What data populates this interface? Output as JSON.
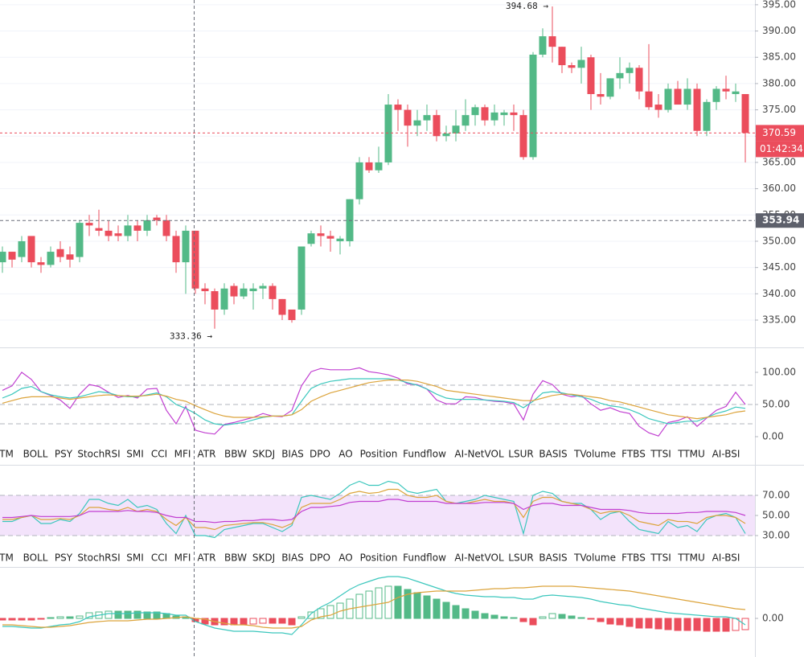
{
  "chart_data": [
    {
      "type": "candlestick",
      "up_color": "#53b987",
      "down_color": "#eb4d5c",
      "ylim": [
        329.8,
        395.9
      ],
      "yticks": [
        {
          "value": 335,
          "label": "335.00"
        },
        {
          "value": 340,
          "label": "340.00"
        },
        {
          "value": 345,
          "label": "345.00"
        },
        {
          "value": 350,
          "label": "350.00"
        },
        {
          "value": 355,
          "label": "355.00"
        },
        {
          "value": 360,
          "label": "360.00"
        },
        {
          "value": 365,
          "label": "365.00"
        },
        {
          "value": 370,
          "label": "370.00"
        },
        {
          "value": 375,
          "label": "375.00"
        },
        {
          "value": 380,
          "label": "380.00"
        },
        {
          "value": 385,
          "label": "385.00"
        },
        {
          "value": 390,
          "label": "390.00"
        },
        {
          "value": 395,
          "label": "395.00"
        }
      ],
      "grid": true,
      "open": [
        346,
        348,
        347,
        351,
        346,
        345.5,
        348.5,
        347.5,
        347,
        353.5,
        352.5,
        352,
        351.5,
        351,
        353,
        352,
        354.5,
        354,
        351,
        346,
        352,
        341,
        340.5,
        337,
        341.5,
        339.5,
        340.5,
        341,
        341.5,
        339,
        337,
        337,
        349.5,
        351.5,
        351,
        350,
        350,
        358,
        365,
        363.5,
        365,
        376,
        375,
        372,
        373,
        374,
        370,
        370.5,
        372,
        374,
        375.5,
        373,
        374,
        374.5,
        374,
        366,
        385.5,
        389,
        387,
        383.5,
        383,
        385,
        378,
        377.5,
        381,
        382,
        383,
        378.5,
        376,
        375,
        379,
        376,
        379,
        371,
        376.5,
        379,
        378,
        378
      ],
      "high": [
        349,
        348,
        351,
        351,
        347,
        349,
        350,
        349,
        354,
        355,
        356,
        354,
        353,
        355,
        354,
        355,
        355,
        355,
        352,
        353,
        352,
        342,
        341,
        342,
        342,
        342,
        342,
        342,
        342,
        339,
        337,
        349,
        352,
        353,
        352,
        351,
        358,
        366,
        366,
        368,
        378,
        377,
        376,
        375,
        376,
        375,
        372,
        375,
        377,
        376,
        376,
        376,
        375,
        376,
        375,
        386,
        390.5,
        394.68,
        387,
        384,
        387,
        385.5,
        382,
        381,
        385,
        384,
        383.5,
        387.5,
        378,
        380,
        380.5,
        381,
        380,
        377,
        379.5,
        381.5,
        380,
        378
      ],
      "low": [
        344,
        345,
        346,
        345,
        344,
        345,
        346,
        345,
        346,
        351,
        351,
        350,
        350,
        350,
        350,
        351,
        353,
        350,
        344,
        340,
        340,
        338,
        333.36,
        336,
        338,
        339,
        337,
        339,
        337,
        335,
        334.5,
        336,
        349,
        349,
        348,
        347.5,
        349,
        357,
        363,
        363,
        364.5,
        371,
        368,
        370,
        371,
        369,
        369,
        369,
        371,
        372,
        372,
        372,
        372,
        371,
        365.5,
        365.5,
        385,
        384,
        382,
        382,
        380,
        375,
        376,
        377,
        379,
        380,
        377,
        375,
        373.5,
        374.5,
        376,
        375,
        370,
        370,
        375,
        377,
        376.5,
        365
      ],
      "close": [
        348,
        346.5,
        350,
        346,
        345.5,
        348,
        347,
        346.5,
        353.5,
        353,
        352,
        351,
        351,
        353,
        352,
        354,
        354,
        351,
        346,
        352,
        341,
        340.5,
        337,
        341,
        339.5,
        341,
        341,
        341.5,
        339,
        336,
        335,
        349,
        351.5,
        351,
        350.5,
        350.5,
        358,
        365,
        363.5,
        365,
        376,
        375,
        372,
        373,
        374,
        370,
        370.5,
        372,
        374,
        375.5,
        373,
        374.5,
        374.5,
        374,
        366,
        385.5,
        389,
        387,
        383.5,
        383,
        384.5,
        378,
        377.5,
        381,
        382,
        383,
        378.5,
        375.5,
        375,
        379,
        376,
        379,
        371,
        376.5,
        379,
        378.5,
        378.5,
        370.59
      ],
      "last_price": {
        "value": 370.59,
        "label": "370.59"
      },
      "countdown": "01:42:34",
      "crosshair_price": {
        "value": 353.94,
        "label": "353.94"
      },
      "high_label": {
        "value": 394.68,
        "label": "394.68 →"
      },
      "low_label": {
        "value": 333.36,
        "label": "333.36 →"
      }
    },
    {
      "type": "line",
      "ylim": [
        -43.75,
        138.75
      ],
      "yticks": [
        {
          "value": 0,
          "label": "0.00"
        },
        {
          "value": 50,
          "label": "50.00"
        },
        {
          "value": 100,
          "label": "100.00"
        }
      ],
      "guides": [
        80,
        50,
        20
      ],
      "series": [
        {
          "color": "#c13fd1",
          "values": [
            72,
            79,
            100,
            89,
            70,
            64,
            57,
            44,
            66,
            81,
            78,
            69,
            61,
            64,
            60,
            74,
            75,
            41,
            20,
            47,
            10,
            6,
            4,
            19,
            22,
            26,
            30,
            36,
            32,
            31,
            41,
            79,
            101,
            106,
            104,
            104,
            104,
            107,
            101,
            99,
            96,
            91,
            82,
            81,
            74,
            57,
            51,
            51,
            62,
            61,
            57,
            55,
            54,
            51,
            26,
            66,
            87,
            81,
            66,
            62,
            64,
            51,
            41,
            45,
            39,
            36,
            16,
            6,
            1,
            22,
            25,
            31,
            16,
            29,
            41,
            47,
            69,
            50
          ]
        },
        {
          "color": "#3cc7bd",
          "values": [
            60,
            66,
            75,
            78,
            70,
            65,
            62,
            60,
            62,
            66,
            70,
            68,
            64,
            62,
            62,
            65,
            68,
            62,
            50,
            44,
            36,
            26,
            20,
            18,
            20,
            22,
            26,
            30,
            32,
            32,
            34,
            55,
            75,
            82,
            86,
            88,
            90,
            90,
            90,
            90,
            90,
            88,
            84,
            80,
            74,
            66,
            60,
            58,
            58,
            58,
            57,
            56,
            55,
            53,
            45,
            55,
            68,
            70,
            68,
            65,
            62,
            58,
            52,
            48,
            46,
            42,
            36,
            28,
            24,
            20,
            22,
            24,
            24,
            30,
            36,
            40,
            46,
            44
          ]
        },
        {
          "color": "#dca43c",
          "values": [
            52,
            56,
            60,
            62,
            62,
            62,
            60,
            58,
            60,
            62,
            64,
            65,
            64,
            63,
            63,
            64,
            66,
            63,
            58,
            55,
            48,
            42,
            36,
            32,
            30,
            30,
            30,
            31,
            32,
            32,
            34,
            42,
            55,
            62,
            68,
            72,
            76,
            80,
            84,
            86,
            88,
            88,
            88,
            86,
            82,
            78,
            72,
            70,
            68,
            66,
            64,
            62,
            60,
            58,
            56,
            56,
            60,
            64,
            66,
            66,
            64,
            62,
            60,
            56,
            54,
            50,
            46,
            42,
            38,
            34,
            32,
            30,
            28,
            30,
            32,
            34,
            38,
            40
          ]
        }
      ],
      "tabs": [
        "TM",
        "BOLL",
        "PSY",
        "StochRSI",
        "SMI",
        "CCI",
        "MFI",
        "ATR",
        "BBW",
        "SKDJ",
        "BIAS",
        "DPO",
        "AO",
        "Position",
        "Fundflow",
        "AI-NetVOL",
        "LSUR",
        "BASIS",
        "TVolume",
        "FTBS",
        "TTSI",
        "TTMU",
        "AI-BSI"
      ]
    },
    {
      "type": "line",
      "ylim": [
        -1.2,
        100.4
      ],
      "yticks": [
        {
          "value": 30,
          "label": "30.00"
        },
        {
          "value": 50,
          "label": "50.00"
        },
        {
          "value": 70,
          "label": "70.00"
        }
      ],
      "guides": [
        70,
        30
      ],
      "band": [
        30,
        70
      ],
      "band_color": "#f3e3fb",
      "series": [
        {
          "color": "#3cc7bd",
          "values": [
            44,
            44,
            48,
            50,
            42,
            42,
            46,
            44,
            52,
            66,
            66,
            62,
            60,
            66,
            58,
            60,
            56,
            42,
            32,
            50,
            30,
            30,
            28,
            36,
            38,
            40,
            42,
            42,
            38,
            34,
            40,
            68,
            70,
            68,
            66,
            72,
            80,
            84,
            80,
            80,
            84,
            82,
            74,
            72,
            74,
            76,
            64,
            62,
            64,
            66,
            70,
            68,
            66,
            64,
            32,
            70,
            74,
            72,
            64,
            62,
            62,
            56,
            46,
            52,
            54,
            44,
            36,
            34,
            32,
            44,
            38,
            40,
            34,
            46,
            50,
            52,
            48,
            32
          ]
        },
        {
          "color": "#dca43c",
          "values": [
            46,
            46,
            48,
            50,
            46,
            46,
            47,
            46,
            50,
            58,
            58,
            56,
            55,
            58,
            54,
            56,
            54,
            46,
            40,
            48,
            38,
            38,
            36,
            40,
            41,
            42,
            43,
            43,
            41,
            38,
            42,
            58,
            62,
            62,
            62,
            66,
            72,
            74,
            72,
            73,
            76,
            76,
            70,
            68,
            68,
            70,
            64,
            62,
            62,
            64,
            66,
            64,
            64,
            62,
            48,
            64,
            68,
            68,
            64,
            62,
            60,
            56,
            52,
            54,
            54,
            50,
            44,
            42,
            40,
            46,
            44,
            44,
            42,
            48,
            50,
            50,
            48,
            42
          ]
        },
        {
          "color": "#c13fd1",
          "values": [
            48,
            48,
            49,
            50,
            49,
            49,
            49,
            49,
            50,
            54,
            54,
            54,
            54,
            55,
            54,
            54,
            53,
            50,
            48,
            48,
            44,
            44,
            43,
            44,
            44,
            45,
            45,
            46,
            46,
            45,
            46,
            54,
            58,
            58,
            59,
            60,
            63,
            64,
            64,
            64,
            66,
            66,
            64,
            64,
            64,
            64,
            62,
            62,
            62,
            62,
            63,
            63,
            63,
            62,
            56,
            60,
            62,
            62,
            60,
            60,
            60,
            58,
            56,
            56,
            56,
            55,
            53,
            52,
            52,
            52,
            52,
            53,
            53,
            54,
            54,
            54,
            53,
            50
          ]
        }
      ],
      "tabs": [
        "TM",
        "BOLL",
        "PSY",
        "StochRSI",
        "SMI",
        "CCI",
        "MFI",
        "ATR",
        "BBW",
        "SKDJ",
        "BIAS",
        "DPO",
        "AO",
        "Position",
        "Fundflow",
        "AI-NetVOL",
        "LSUR",
        "BASIS",
        "TVolume",
        "FTBS",
        "TTSI",
        "TTMU",
        "AI-BSI"
      ]
    },
    {
      "type": "macd",
      "ylim": [
        -2.4,
        3.2
      ],
      "yticks": [
        {
          "value": 0,
          "label": "0.00"
        }
      ],
      "up_color": "#53b987",
      "down_color": "#eb4d5c",
      "histogram": [
        -0.1,
        -0.1,
        -0.1,
        -0.1,
        -0.05,
        0.05,
        0.1,
        0.1,
        0.15,
        0.35,
        0.4,
        0.45,
        0.45,
        0.45,
        0.45,
        0.4,
        0.4,
        0.3,
        0.15,
        0.1,
        -0.2,
        -0.35,
        -0.4,
        -0.4,
        -0.4,
        -0.4,
        -0.35,
        -0.3,
        -0.3,
        -0.3,
        -0.4,
        0.1,
        0.4,
        0.6,
        0.8,
        0.95,
        1.2,
        1.5,
        1.7,
        1.9,
        2.0,
        2.0,
        1.8,
        1.6,
        1.4,
        1.2,
        1.0,
        0.8,
        0.6,
        0.45,
        0.3,
        0.2,
        0.1,
        0.05,
        -0.2,
        -0.4,
        0.1,
        0.3,
        0.25,
        0.15,
        0.05,
        -0.05,
        -0.2,
        -0.35,
        -0.4,
        -0.5,
        -0.6,
        -0.6,
        -0.65,
        -0.7,
        -0.75,
        -0.75,
        -0.75,
        -0.8,
        -0.8,
        -0.8,
        -0.75,
        -0.7
      ],
      "series": [
        {
          "color": "#3cc7bd",
          "values": [
            -0.5,
            -0.5,
            -0.55,
            -0.6,
            -0.6,
            -0.5,
            -0.4,
            -0.35,
            -0.2,
            0.1,
            0.2,
            0.3,
            0.3,
            0.3,
            0.35,
            0.35,
            0.35,
            0.3,
            0.2,
            0.2,
            -0.2,
            -0.4,
            -0.6,
            -0.7,
            -0.8,
            -0.8,
            -0.8,
            -0.85,
            -0.9,
            -0.9,
            -1.0,
            -0.4,
            0.3,
            0.7,
            1.0,
            1.4,
            1.8,
            2.1,
            2.3,
            2.5,
            2.6,
            2.6,
            2.5,
            2.3,
            2.1,
            1.9,
            1.7,
            1.55,
            1.45,
            1.4,
            1.35,
            1.35,
            1.3,
            1.3,
            1.2,
            1.2,
            1.4,
            1.45,
            1.4,
            1.35,
            1.3,
            1.2,
            1.05,
            0.95,
            0.85,
            0.8,
            0.65,
            0.55,
            0.45,
            0.35,
            0.3,
            0.25,
            0.2,
            0.15,
            0.1,
            0.1,
            0.0,
            -0.4
          ]
        },
        {
          "color": "#dca43c",
          "values": [
            -0.4,
            -0.4,
            -0.45,
            -0.5,
            -0.55,
            -0.55,
            -0.5,
            -0.45,
            -0.35,
            -0.25,
            -0.2,
            -0.15,
            -0.15,
            -0.15,
            -0.1,
            -0.05,
            -0.05,
            0,
            0.05,
            0.1,
            0,
            -0.05,
            -0.2,
            -0.3,
            -0.4,
            -0.4,
            -0.45,
            -0.55,
            -0.6,
            -0.6,
            -0.6,
            -0.5,
            -0.1,
            0.1,
            0.2,
            0.45,
            0.6,
            0.7,
            0.8,
            0.9,
            1.0,
            1.3,
            1.5,
            1.6,
            1.65,
            1.7,
            1.7,
            1.7,
            1.7,
            1.75,
            1.8,
            1.85,
            1.85,
            1.9,
            1.9,
            1.95,
            2.0,
            2.0,
            2.0,
            2.0,
            1.95,
            1.9,
            1.85,
            1.8,
            1.75,
            1.7,
            1.6,
            1.5,
            1.4,
            1.3,
            1.2,
            1.1,
            1.0,
            0.9,
            0.8,
            0.7,
            0.6,
            0.55
          ]
        }
      ]
    }
  ]
}
